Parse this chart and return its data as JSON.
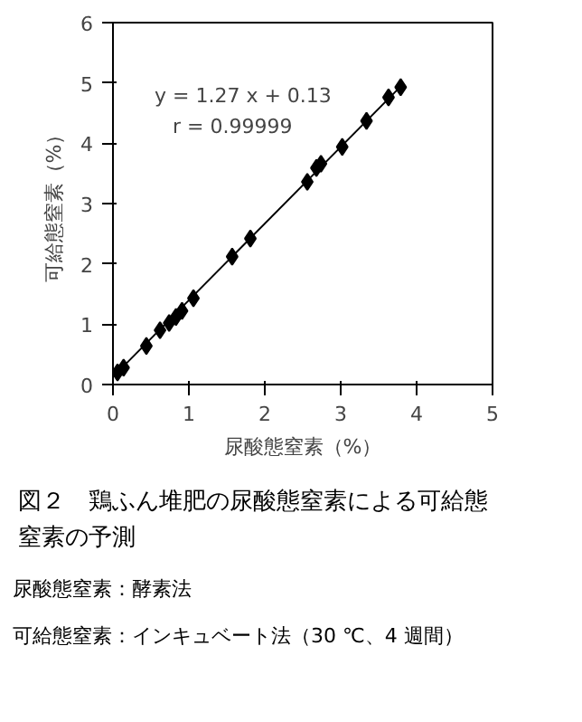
{
  "chart_data": {
    "type": "scatter",
    "title": "図２　鶏ふん堆肥の尿酸態窒素による可給態窒素の予測",
    "xlabel": "尿酸態窒素（%）",
    "ylabel": "可給態窒素（%）",
    "xlim": [
      0,
      5
    ],
    "ylim": [
      0,
      6
    ],
    "xticks": [
      0,
      1,
      2,
      3,
      4,
      5
    ],
    "yticks": [
      0,
      1,
      2,
      3,
      4,
      5,
      6
    ],
    "grid": false,
    "marker": "diamond",
    "color": "#000000",
    "x": [
      0.06,
      0.14,
      0.44,
      0.62,
      0.74,
      0.83,
      0.91,
      1.06,
      1.57,
      1.81,
      2.56,
      2.68,
      2.74,
      3.02,
      3.34,
      3.63,
      3.79
    ],
    "values": [
      0.2,
      0.28,
      0.64,
      0.9,
      1.02,
      1.12,
      1.22,
      1.43,
      2.12,
      2.42,
      3.36,
      3.59,
      3.66,
      3.94,
      4.37,
      4.76,
      4.93
    ],
    "series": [
      {
        "type": "line",
        "marker": "none",
        "color": "#000000",
        "x": [
          0.05,
          3.78
        ],
        "values": [
          0.19,
          4.93
        ]
      }
    ],
    "annotations": [
      "y = 1.27 x + 0.13",
      "r = 0.99999",
      "尿酸態窒素：酵素法",
      "可給態窒素：インキュベート法（30 ℃、4 週間）"
    ]
  }
}
